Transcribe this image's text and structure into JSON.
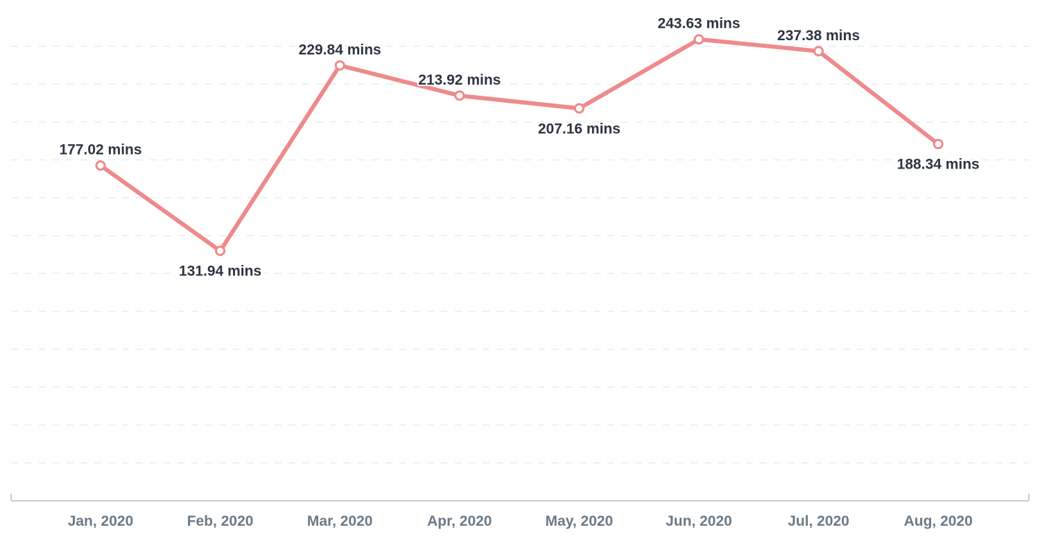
{
  "chart_data": {
    "type": "line",
    "title": "",
    "xlabel": "",
    "ylabel": "",
    "categories": [
      "Jan, 2020",
      "Feb, 2020",
      "Mar, 2020",
      "Apr, 2020",
      "May, 2020",
      "Jun, 2020",
      "Jul, 2020",
      "Aug, 2020"
    ],
    "series": [
      {
        "values": [
          177.02,
          131.94,
          229.84,
          213.92,
          207.16,
          243.63,
          237.38,
          188.34
        ],
        "labels": [
          "177.02 mins",
          "131.94 mins",
          "229.84 mins",
          "213.92 mins",
          "207.16 mins",
          "243.63 mins",
          "237.38 mins",
          "188.34 mins"
        ],
        "label_positions": [
          "above",
          "below",
          "above",
          "above",
          "below",
          "above",
          "above",
          "below"
        ],
        "color": "#ee8a8c"
      }
    ],
    "ylim": [
      0,
      260
    ],
    "grid": true,
    "y_tick_labels_shown": false,
    "legend": "none"
  }
}
